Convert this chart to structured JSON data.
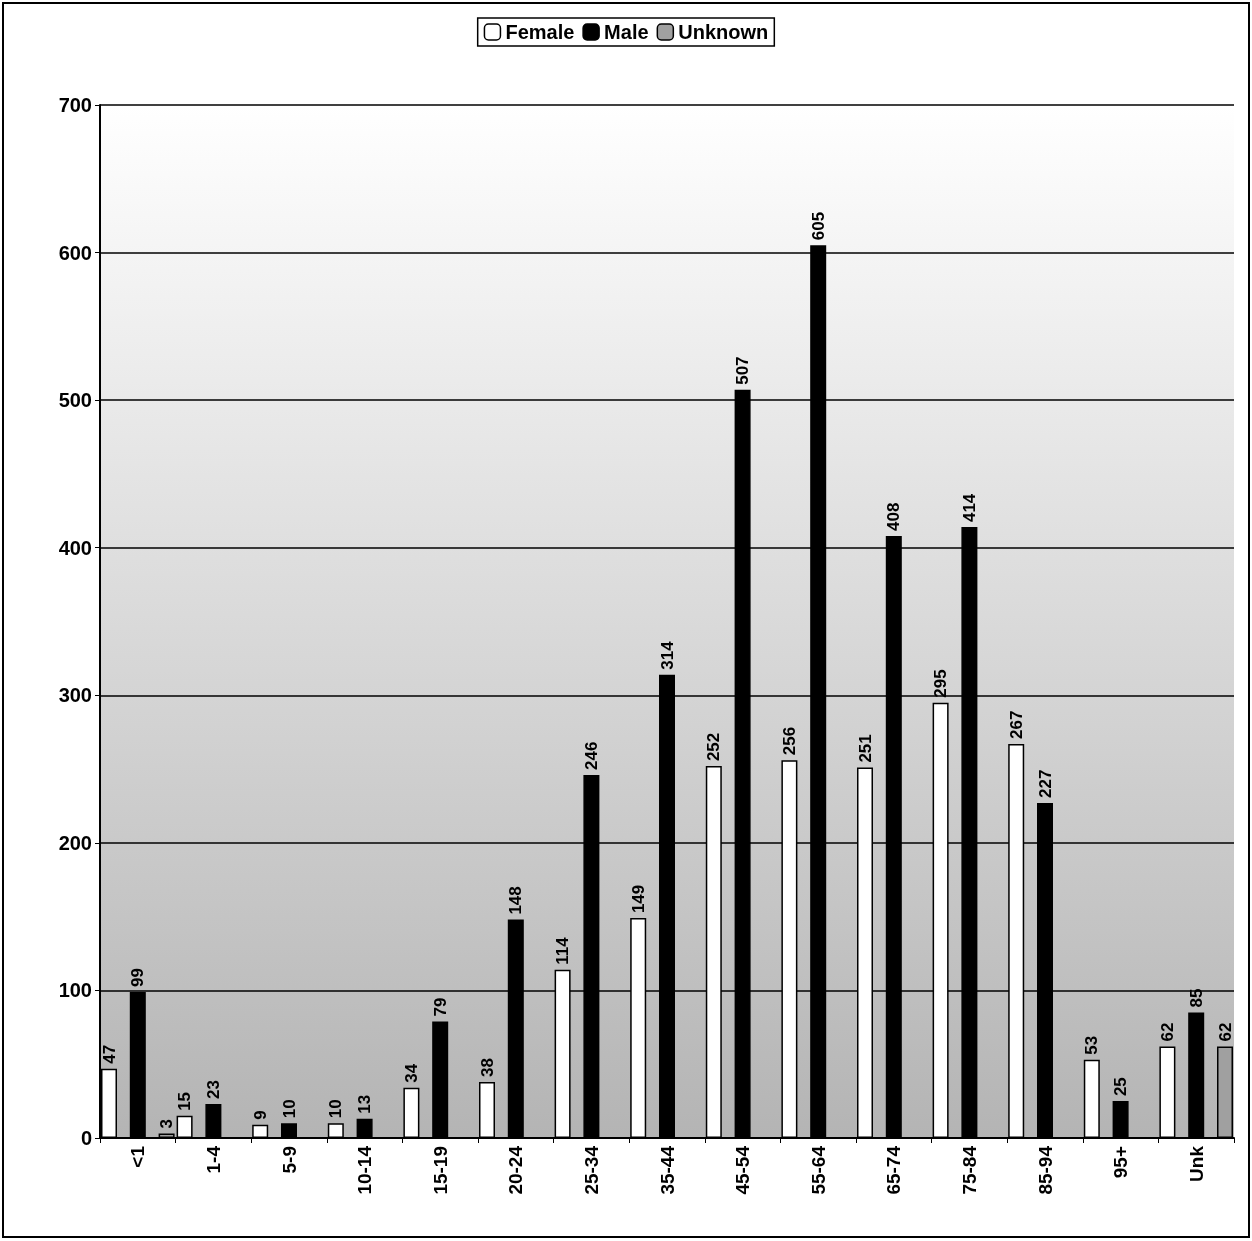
{
  "chart_data": {
    "type": "bar",
    "categories": [
      "<1",
      "1-4",
      "5-9",
      "10-14",
      "15-19",
      "20-24",
      "25-34",
      "35-44",
      "45-54",
      "55-64",
      "65-74",
      "75-84",
      "85-94",
      "95+",
      "Unk"
    ],
    "series": [
      {
        "name": "Female",
        "color": "#ffffff",
        "values": [
          47,
          15,
          9,
          10,
          34,
          38,
          114,
          149,
          252,
          256,
          251,
          295,
          267,
          53,
          62
        ]
      },
      {
        "name": "Male",
        "color": "#000000",
        "values": [
          99,
          23,
          10,
          13,
          79,
          148,
          246,
          314,
          507,
          605,
          408,
          414,
          227,
          25,
          85
        ]
      },
      {
        "name": "Unknown",
        "color": "#a0a0a0",
        "values": [
          3,
          null,
          null,
          null,
          null,
          null,
          null,
          null,
          null,
          null,
          null,
          null,
          null,
          null,
          62
        ]
      }
    ],
    "ylim": [
      0,
      700
    ],
    "yticks": [
      0,
      100,
      200,
      300,
      400,
      500,
      600,
      700
    ],
    "grid": "y",
    "legend": "top",
    "data_labels": true
  }
}
